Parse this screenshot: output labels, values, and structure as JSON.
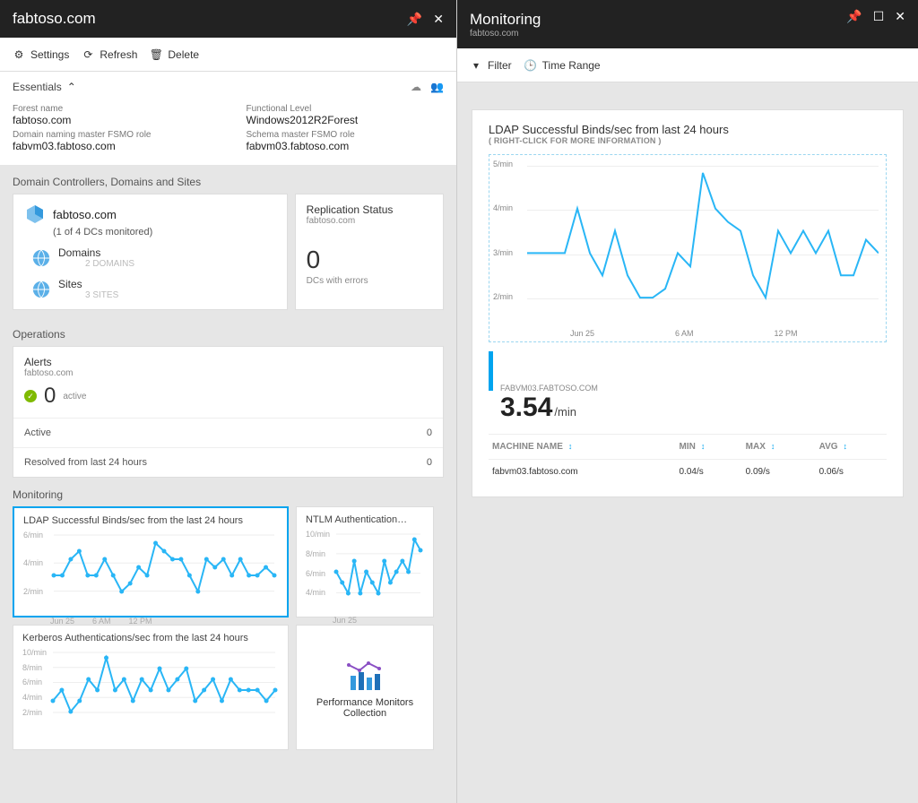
{
  "colors": {
    "accent": "#00a4ef",
    "green": "#7fba00",
    "chart_line": "#29b6f6",
    "header_bg": "#222222",
    "panel_bg": "#e6e6e6",
    "card_border": "#dddddd"
  },
  "left": {
    "title": "fabtoso.com",
    "toolbar": {
      "settings": "Settings",
      "refresh": "Refresh",
      "delete": "Delete"
    },
    "essentials": {
      "label": "Essentials",
      "forest_name_lbl": "Forest name",
      "forest_name": "fabtoso.com",
      "dn_role_lbl": "Domain naming master FSMO role",
      "dn_role": "fabvm03.fabtoso.com",
      "func_lbl": "Functional Level",
      "func": "Windows2012R2Forest",
      "schema_lbl": "Schema master FSMO role",
      "schema": "fabvm03.fabtoso.com"
    },
    "dc_section": "Domain Controllers, Domains and Sites",
    "dc_card": {
      "title": "fabtoso.com",
      "sub": "(1 of 4 DCs monitored)",
      "domains_lbl": "Domains",
      "domains_cnt": "2 DOMAINS",
      "sites_lbl": "Sites",
      "sites_cnt": "3 SITES"
    },
    "rep_card": {
      "title": "Replication Status",
      "sub": "fabtoso.com",
      "value": "0",
      "foot": "DCs with errors"
    },
    "ops_section": "Operations",
    "alerts": {
      "title": "Alerts",
      "sub": "fabtoso.com",
      "value": "0",
      "state": "active",
      "rows": [
        {
          "l": "Active",
          "v": "0"
        },
        {
          "l": "Resolved from last 24 hours",
          "v": "0"
        }
      ]
    },
    "mon_section": "Monitoring",
    "charts": {
      "ldap": {
        "title": "LDAP Successful Binds/sec from the last 24 hours",
        "ylabels": [
          "6/min",
          "4/min",
          "2/min"
        ],
        "xlabels": [
          "Jun 25",
          "6 AM",
          "12 PM"
        ],
        "points": [
          3,
          3,
          4,
          4.5,
          3,
          3,
          4,
          3,
          2,
          2.5,
          3.5,
          3,
          5,
          4.5,
          4,
          4,
          3,
          2,
          4,
          3.5,
          4,
          3,
          4,
          3,
          3,
          3.5,
          3
        ]
      },
      "ntlm": {
        "title": "NTLM Authentication…",
        "ylabels": [
          "10/min",
          "8/min",
          "6/min",
          "4/min"
        ],
        "xlabels": [
          "Jun 25"
        ],
        "points": [
          6,
          5,
          4,
          7,
          4,
          6,
          5,
          4,
          7,
          5,
          6,
          7,
          6,
          9,
          8
        ]
      },
      "kerb": {
        "title": "Kerberos Authentications/sec from the last 24 hours",
        "ylabels": [
          "10/min",
          "8/min",
          "6/min",
          "4/min",
          "2/min"
        ],
        "xlabels": [],
        "points": [
          4,
          5,
          3,
          4,
          6,
          5,
          8,
          5,
          6,
          4,
          6,
          5,
          7,
          5,
          6,
          7,
          4,
          5,
          6,
          4,
          6,
          5,
          5,
          5,
          4,
          5
        ]
      },
      "perf": {
        "title": "Performance Monitors Collection"
      }
    }
  },
  "right": {
    "title": "Monitoring",
    "sub": "fabtoso.com",
    "toolbar": {
      "filter": "Filter",
      "time": "Time Range"
    },
    "metric": {
      "title": "LDAP Successful Binds/sec from last 24 hours",
      "sub": "( RIGHT-CLICK FOR MORE INFORMATION )",
      "ylabels": [
        "5/min",
        "4/min",
        "3/min",
        "2/min"
      ],
      "xlabels": [
        "Jun 25",
        "6 AM",
        "12 PM"
      ],
      "points": [
        3.5,
        3.5,
        3.5,
        3.5,
        4.5,
        3.5,
        3,
        4,
        3,
        2.5,
        2.5,
        2.7,
        3.5,
        3.2,
        5.3,
        4.5,
        4.2,
        4,
        3,
        2.5,
        4,
        3.5,
        4,
        3.5,
        4,
        3,
        3,
        3.8,
        3.5
      ],
      "ymin": 2,
      "ymax": 5.5,
      "kpi_host": "FABVM03.FABTOSO.COM",
      "kpi_val": "3.54",
      "kpi_unit": "/min",
      "table": {
        "cols": [
          "MACHINE NAME",
          "MIN",
          "MAX",
          "AVG"
        ],
        "rows": [
          [
            "fabvm03.fabtoso.com",
            "0.04/s",
            "0.09/s",
            "0.06/s"
          ]
        ]
      }
    }
  }
}
